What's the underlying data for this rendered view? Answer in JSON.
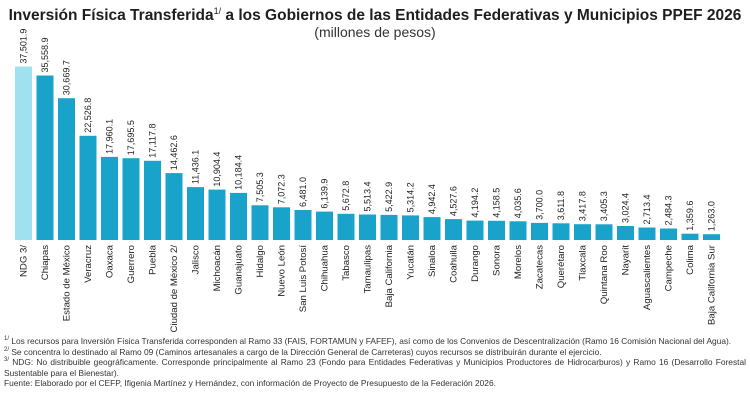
{
  "header": {
    "title": "Inversión Física Transferida",
    "title_sup": "1/",
    "title_rest": " a los Gobiernos de las Entidades Federativas y Municipios PPEF 2026",
    "subtitle": "(millones de pesos)"
  },
  "colors": {
    "highlight": "#9fe1ee",
    "bar": "#1aa3ca"
  },
  "chart_data": {
    "type": "bar",
    "title": "Inversión Física Transferida a los Gobiernos de las Entidades Federativas y Municipios PPEF 2026",
    "subtitle": "(millones de pesos)",
    "categories": [
      "NDG 3/",
      "Chiapas",
      "Estado de México",
      "Veracruz",
      "Oaxaca",
      "Guerrero",
      "Puebla",
      "Ciudad de México 2/",
      "Jalisco",
      "Michoacán",
      "Guanajuato",
      "Hidalgo",
      "Nuevo León",
      "San Luis Potosí",
      "Chihuahua",
      "Tabasco",
      "Tamaulipas",
      "Baja California",
      "Yucatán",
      "Sinaloa",
      "Coahuila",
      "Durango",
      "Sonora",
      "Morelos",
      "Zacatecas",
      "Querétaro",
      "Tlaxcala",
      "Quintana Roo",
      "Nayarit",
      "Aguascalientes",
      "Campeche",
      "Colima",
      "Baja California Sur"
    ],
    "values": [
      37501.9,
      35558.9,
      30669.7,
      22526.8,
      17960.1,
      17695.5,
      17117.8,
      14462.6,
      11436.1,
      10904.4,
      10184.4,
      7505.3,
      7072.3,
      6481.0,
      6139.9,
      5672.8,
      5513.4,
      5422.9,
      5314.2,
      4942.4,
      4527.6,
      4194.2,
      4158.5,
      4035.6,
      3700.0,
      3611.8,
      3417.8,
      3405.3,
      3024.4,
      2713.4,
      2484.3,
      1359.6,
      1263.0
    ],
    "value_labels": [
      "37,501.9",
      "35,558.9",
      "30,669.7",
      "22,526.8",
      "17,960.1",
      "17,695.5",
      "17,117.8",
      "14,462.6",
      "11,436.1",
      "10,904.4",
      "10,184.4",
      "7,505.3",
      "7,072.3",
      "6,481.0",
      "6,139.9",
      "5,672.8",
      "5,513.4",
      "5,422.9",
      "5,314.2",
      "4,942.4",
      "4,527.6",
      "4,194.2",
      "4,158.5",
      "4,035.6",
      "3,700.0",
      "3,611.8",
      "3,417.8",
      "3,405.3",
      "3,024.4",
      "2,713.4",
      "2,484.3",
      "1,359.6",
      "1,263.0"
    ],
    "highlight_index": 0,
    "ylim": [
      0,
      40000
    ],
    "grid": false,
    "legend": "none"
  },
  "notes": [
    {
      "sup": "1/",
      "text": " Los recursos para Inversión Física Transferida corresponden al Ramo 33 (FAIS, FORTAMUN y FAFEF), así como de los Convenios de Descentralización (Ramo 16 Comisión Nacional del Agua)."
    },
    {
      "sup": "2/",
      "text": " Se concentra lo destinado al Ramo 09 (Caminos artesanales a cargo de la Dirección General de Carreteras) cuyos recursos se distribuirán durante el ejercicio."
    },
    {
      "sup": "3/",
      "text": " NDG: No distribuible geográficamente. Corresponde principalmente al Ramo 23 (Fondo para Entidades Federativas y Municipios Productores de Hidrocarburos) y Ramo 16 (Desarrollo Forestal Sustentable para el Bienestar)."
    },
    {
      "sup": "",
      "text": "Fuente: Elaborado por el CEFP, Ifigenia Martínez y Hernández, con información de Proyecto de Presupuesto de la Federación 2026."
    }
  ]
}
